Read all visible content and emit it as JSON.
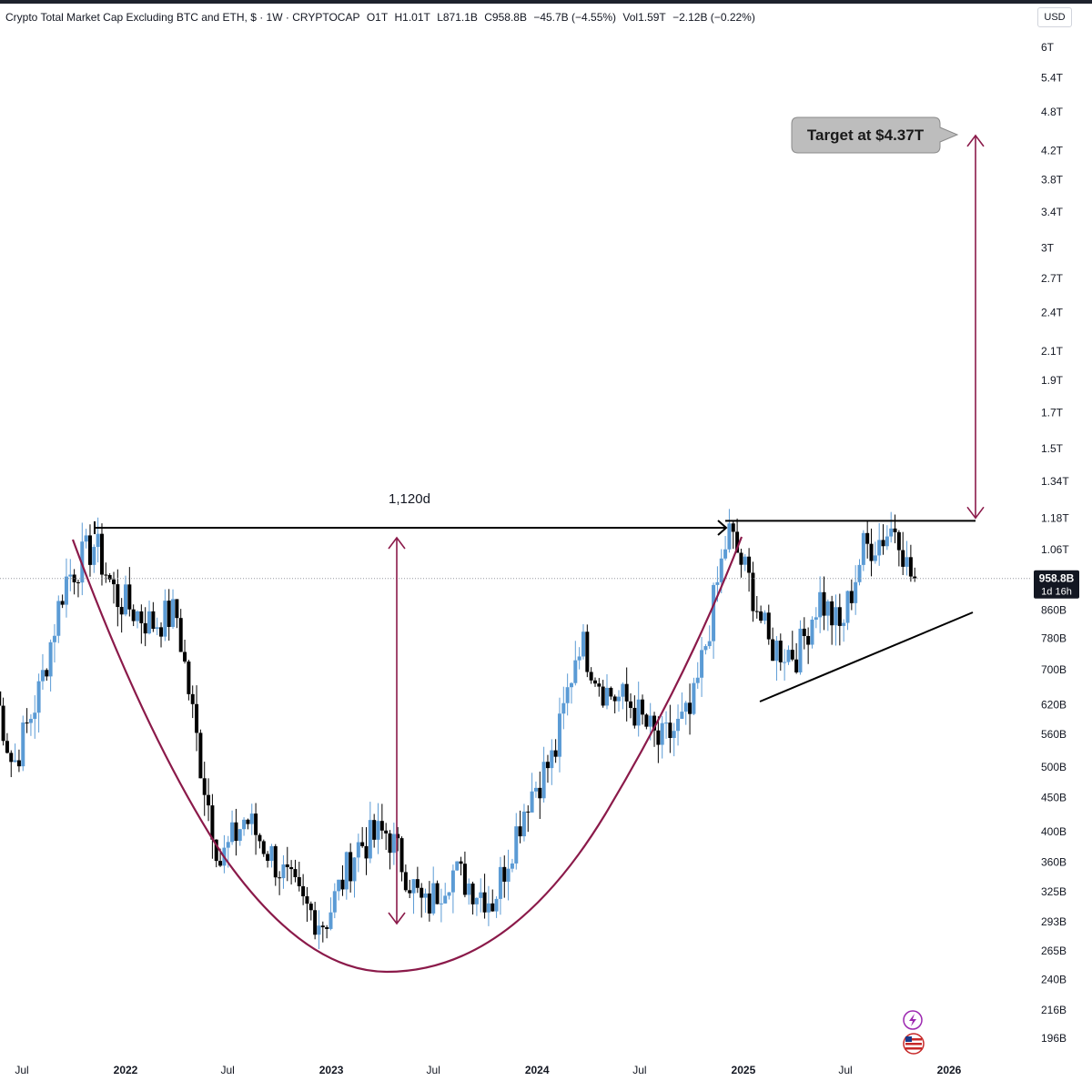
{
  "header": {
    "symbol": "Crypto Total Market Cap Excluding BTC and ETH, $ · 1W · CRYPTOCAP",
    "open": "O1T",
    "high": "H1.01T",
    "low": "L871.1B",
    "close": "C958.8B",
    "change": "−45.7B (−4.55%)",
    "volume": "Vol1.59T",
    "volume_change": "−2.12B (−0.22%)"
  },
  "currency_label": "USD",
  "price_badge": {
    "price": "958.8B",
    "countdown": "1d 16h"
  },
  "chart_data": {
    "type": "candlestick",
    "title": "Crypto Total Market Cap Excluding BTC and ETH, $ · 1W · CRYPTOCAP",
    "y_scale": "log",
    "ylim": [
      185,
      6300
    ],
    "y_ticks": [
      {
        "label": "6T",
        "value": 6000
      },
      {
        "label": "5.4T",
        "value": 5400
      },
      {
        "label": "4.8T",
        "value": 4800
      },
      {
        "label": "4.2T",
        "value": 4200
      },
      {
        "label": "3.8T",
        "value": 3800
      },
      {
        "label": "3.4T",
        "value": 3400
      },
      {
        "label": "3T",
        "value": 3000
      },
      {
        "label": "2.7T",
        "value": 2700
      },
      {
        "label": "2.4T",
        "value": 2400
      },
      {
        "label": "2.1T",
        "value": 2100
      },
      {
        "label": "1.9T",
        "value": 1900
      },
      {
        "label": "1.7T",
        "value": 1700
      },
      {
        "label": "1.5T",
        "value": 1500
      },
      {
        "label": "1.34T",
        "value": 1340
      },
      {
        "label": "1.18T",
        "value": 1180
      },
      {
        "label": "1.06T",
        "value": 1060
      },
      {
        "label": "860B",
        "value": 860
      },
      {
        "label": "780B",
        "value": 780
      },
      {
        "label": "700B",
        "value": 700
      },
      {
        "label": "620B",
        "value": 620
      },
      {
        "label": "560B",
        "value": 560
      },
      {
        "label": "500B",
        "value": 500
      },
      {
        "label": "450B",
        "value": 450
      },
      {
        "label": "400B",
        "value": 400
      },
      {
        "label": "360B",
        "value": 360
      },
      {
        "label": "325B",
        "value": 325
      },
      {
        "label": "293B",
        "value": 293
      },
      {
        "label": "265B",
        "value": 265
      },
      {
        "label": "240B",
        "value": 240
      },
      {
        "label": "216B",
        "value": 216
      },
      {
        "label": "196B",
        "value": 196
      }
    ],
    "x_ticks": [
      {
        "label": "Jul",
        "date": "2021-07-01",
        "bold": false
      },
      {
        "label": "2022",
        "date": "2022-01-01",
        "bold": true
      },
      {
        "label": "Jul",
        "date": "2022-07-01",
        "bold": false
      },
      {
        "label": "2023",
        "date": "2023-01-01",
        "bold": true
      },
      {
        "label": "Jul",
        "date": "2023-07-01",
        "bold": false
      },
      {
        "label": "2024",
        "date": "2024-01-01",
        "bold": true
      },
      {
        "label": "Jul",
        "date": "2024-07-01",
        "bold": false
      },
      {
        "label": "2025",
        "date": "2025-01-01",
        "bold": true
      },
      {
        "label": "Jul",
        "date": "2025-07-01",
        "bold": false
      },
      {
        "label": "2026",
        "date": "2026-01-01",
        "bold": true
      }
    ],
    "x_range": [
      "2021-05-15",
      "2026-02-15"
    ],
    "last_price": 958.8,
    "key_closes": [
      {
        "date": "2021-05-15",
        "value": 650
      },
      {
        "date": "2021-06-15",
        "value": 500
      },
      {
        "date": "2021-08-01",
        "value": 650
      },
      {
        "date": "2021-09-15",
        "value": 950
      },
      {
        "date": "2021-11-07",
        "value": 1080
      },
      {
        "date": "2021-12-15",
        "value": 900
      },
      {
        "date": "2022-02-15",
        "value": 820
      },
      {
        "date": "2022-04-01",
        "value": 850
      },
      {
        "date": "2022-05-15",
        "value": 500
      },
      {
        "date": "2022-06-18",
        "value": 360
      },
      {
        "date": "2022-08-01",
        "value": 420
      },
      {
        "date": "2022-09-15",
        "value": 370
      },
      {
        "date": "2022-11-10",
        "value": 310
      },
      {
        "date": "2022-12-20",
        "value": 292
      },
      {
        "date": "2023-02-15",
        "value": 380
      },
      {
        "date": "2023-04-10",
        "value": 400
      },
      {
        "date": "2023-06-15",
        "value": 305
      },
      {
        "date": "2023-08-01",
        "value": 350
      },
      {
        "date": "2023-10-15",
        "value": 315
      },
      {
        "date": "2023-12-15",
        "value": 450
      },
      {
        "date": "2024-02-01",
        "value": 520
      },
      {
        "date": "2024-03-15",
        "value": 780
      },
      {
        "date": "2024-05-01",
        "value": 650
      },
      {
        "date": "2024-06-15",
        "value": 620
      },
      {
        "date": "2024-08-05",
        "value": 540
      },
      {
        "date": "2024-10-01",
        "value": 600
      },
      {
        "date": "2024-12-05",
        "value": 1130
      },
      {
        "date": "2025-01-15",
        "value": 930
      },
      {
        "date": "2025-02-15",
        "value": 760
      },
      {
        "date": "2025-04-08",
        "value": 740
      },
      {
        "date": "2025-05-15",
        "value": 900
      },
      {
        "date": "2025-06-22",
        "value": 800
      },
      {
        "date": "2025-08-01",
        "value": 1060
      },
      {
        "date": "2025-09-01",
        "value": 1100
      },
      {
        "date": "2025-10-01",
        "value": 1160
      },
      {
        "date": "2025-10-20",
        "value": 980
      },
      {
        "date": "2025-11-01",
        "value": 958.8
      }
    ],
    "annotations": {
      "measure_label": "1,120d",
      "target_label": "Target at $4.37T",
      "resistance_level": 1170,
      "target_value": 4370
    }
  }
}
